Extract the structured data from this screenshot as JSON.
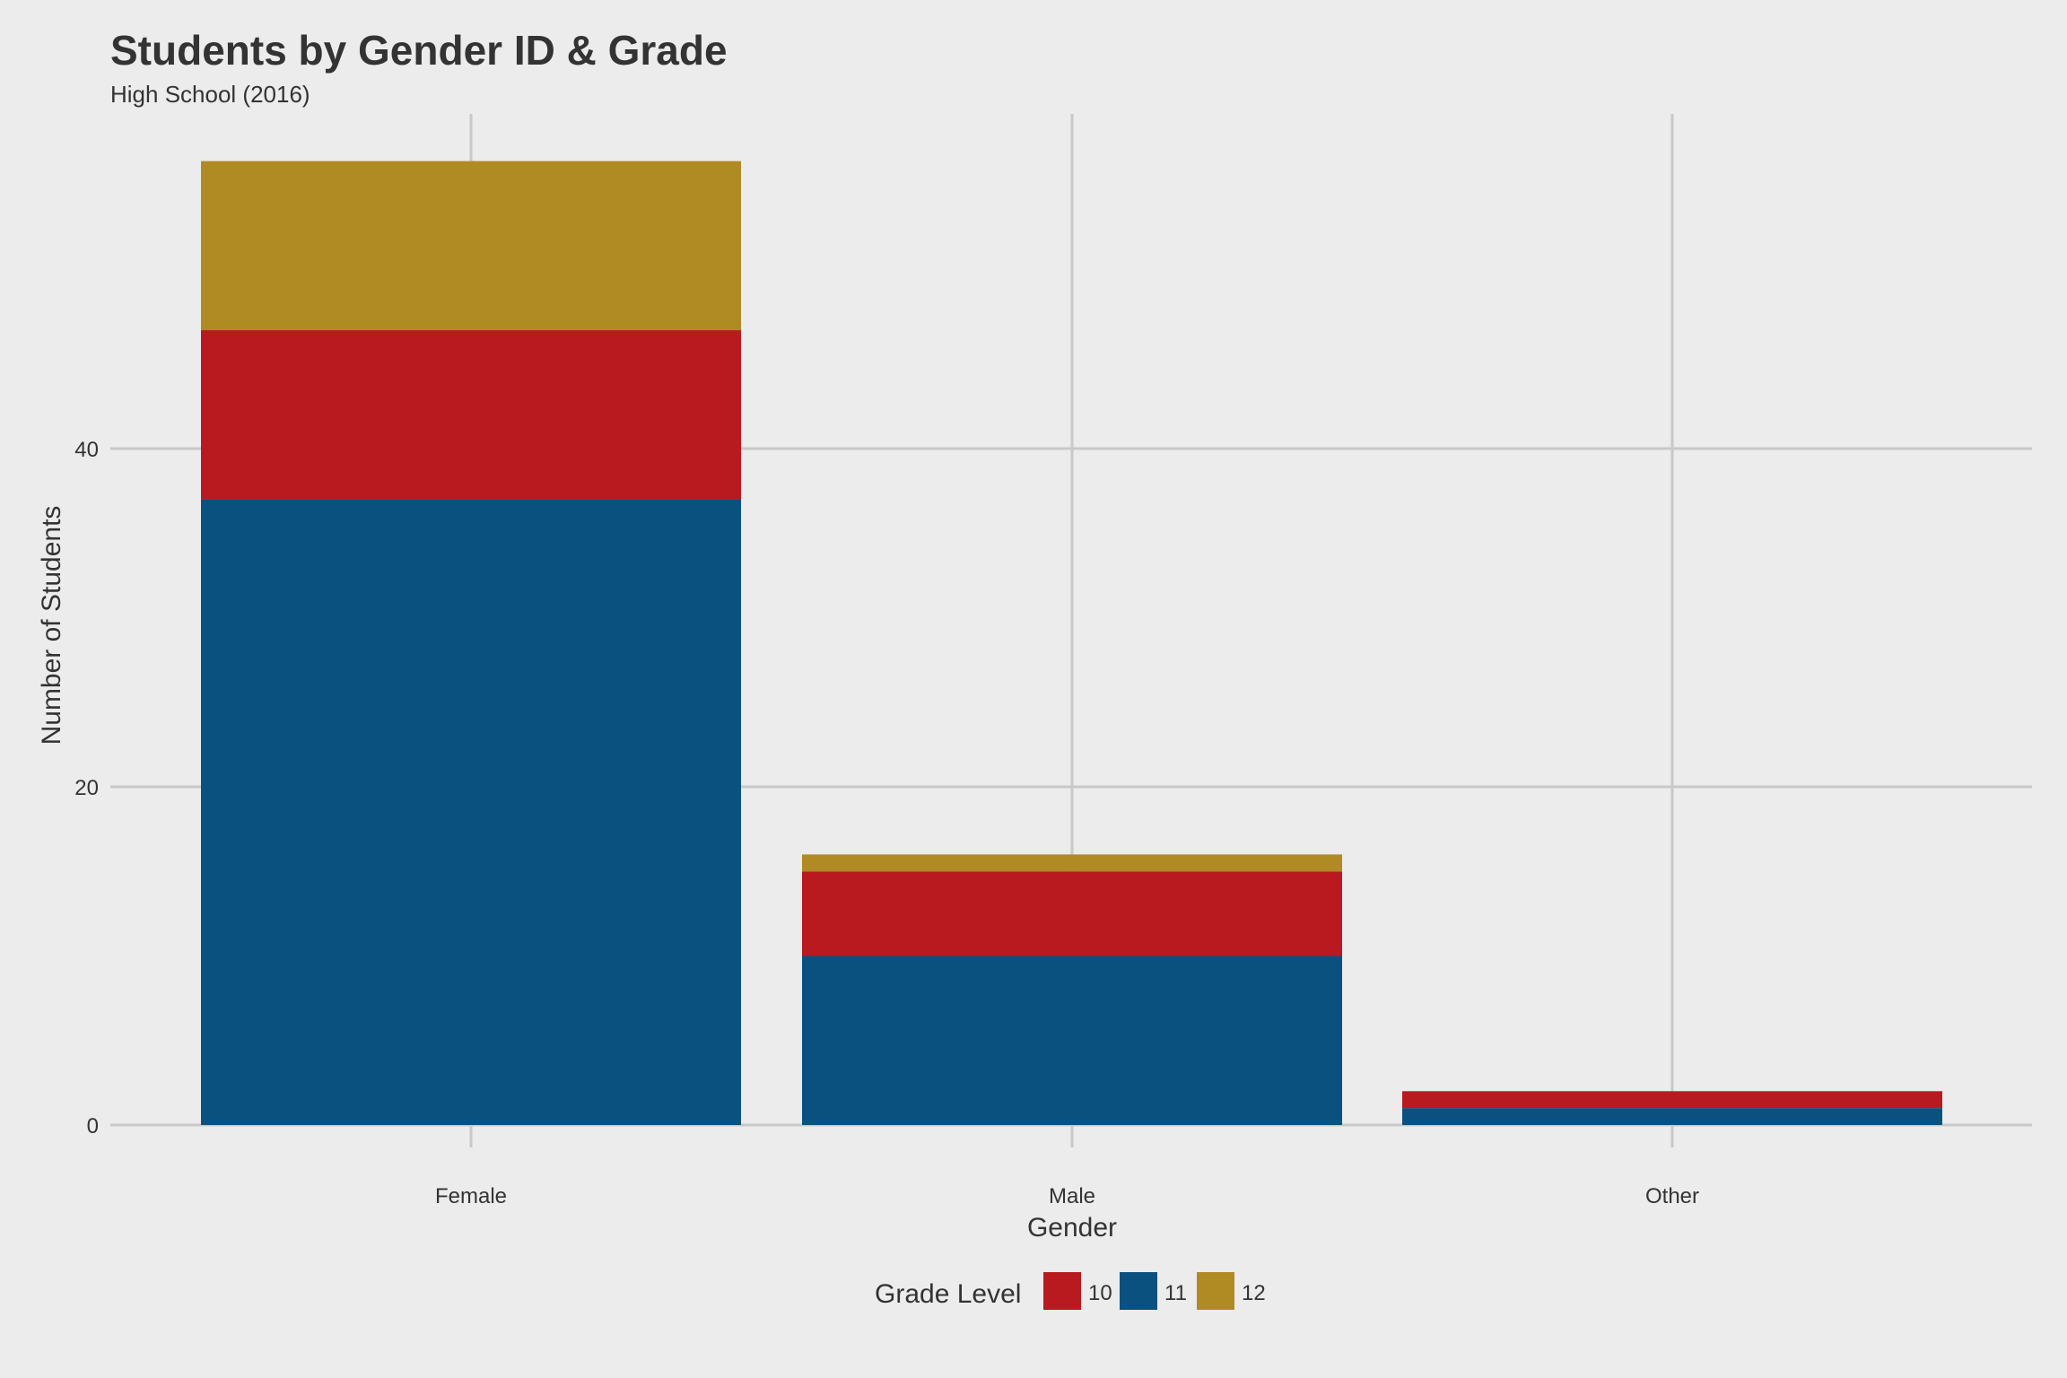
{
  "chart_data": {
    "type": "bar",
    "stacked": true,
    "title": "Students by Gender ID & Grade",
    "subtitle": "High School (2016)",
    "xlabel": "Gender",
    "ylabel": "Number of Students",
    "categories": [
      "Female",
      "Male",
      "Other"
    ],
    "ylim": [
      0,
      60
    ],
    "yticks": [
      0,
      20,
      40
    ],
    "grid": true,
    "legend": {
      "title": "Grade Level",
      "position": "bottom",
      "entries": [
        "10",
        "11",
        "12"
      ]
    },
    "series": [
      {
        "name": "10",
        "color": "#b81a20",
        "values": [
          10,
          5,
          1
        ]
      },
      {
        "name": "11",
        "color": "#0b517f",
        "values": [
          37,
          10,
          1
        ]
      },
      {
        "name": "12",
        "color": "#b08b24",
        "values": [
          10,
          1,
          0
        ]
      }
    ],
    "stack_order_bottom_to_top": [
      "11",
      "10",
      "12"
    ],
    "background_color": "#ececec",
    "grid_color": "#c8c8c8"
  }
}
